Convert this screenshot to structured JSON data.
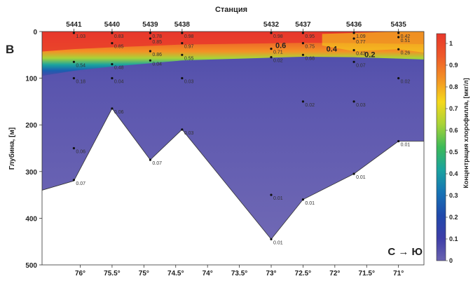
{
  "panel_label": "B",
  "direction_label": "С → Ю",
  "chart_data": {
    "type": "heatmap",
    "title": "Станция",
    "xlabel": "",
    "ylabel": "Глубина, [м]",
    "colorbar_label": "Концентрация хлорофилла, [мкг/л]",
    "xlim": [
      76.6,
      70.6
    ],
    "ylim": [
      500,
      0
    ],
    "x_ticks": [
      "76°",
      "75.5°",
      "75°",
      "74.5°",
      "74°",
      "73.5°",
      "73°",
      "72.5°",
      "72°",
      "71.5°",
      "71°"
    ],
    "x_tick_values": [
      76,
      75.5,
      75,
      74.5,
      74,
      73.5,
      73,
      72.5,
      72,
      71.5,
      71
    ],
    "y_ticks": [
      0,
      100,
      200,
      300,
      400,
      500
    ],
    "colorbar_ticks": [
      0,
      0.1,
      0.2,
      0.3,
      0.4,
      0.5,
      0.6,
      0.7,
      0.8,
      0.9,
      1
    ],
    "colorbar_colors": [
      "#6a63b0",
      "#3d3da8",
      "#2049ab",
      "#1673b5",
      "#1aa39f",
      "#3cba58",
      "#a8d338",
      "#f5d81c",
      "#f39225",
      "#ee5a2a",
      "#e8372b"
    ],
    "stations": [
      {
        "name": "5441",
        "lon": 76.1,
        "bottom_depth": 320
      },
      {
        "name": "5440",
        "lon": 75.5,
        "bottom_depth": 165
      },
      {
        "name": "5439",
        "lon": 74.9,
        "bottom_depth": 275
      },
      {
        "name": "5438",
        "lon": 74.4,
        "bottom_depth": 210
      },
      {
        "name": "5432",
        "lon": 73.0,
        "bottom_depth": 445
      },
      {
        "name": "5437",
        "lon": 72.5,
        "bottom_depth": 360
      },
      {
        "name": "5436",
        "lon": 71.7,
        "bottom_depth": 305
      },
      {
        "name": "5435",
        "lon": 71.0,
        "bottom_depth": 235
      }
    ],
    "samples": [
      {
        "station": "5441",
        "depth": 3,
        "label": "1.03"
      },
      {
        "station": "5441",
        "depth": 65,
        "label": "0.54"
      },
      {
        "station": "5441",
        "depth": 100,
        "label": "0.18"
      },
      {
        "station": "5441",
        "depth": 250,
        "label": "0.06"
      },
      {
        "station": "5441",
        "depth": 318,
        "label": "0.07"
      },
      {
        "station": "5440",
        "depth": 3,
        "label": "0.83"
      },
      {
        "station": "5440",
        "depth": 25,
        "label": "0.85"
      },
      {
        "station": "5440",
        "depth": 70,
        "label": "0.48"
      },
      {
        "station": "5440",
        "depth": 100,
        "label": "0.04"
      },
      {
        "station": "5440",
        "depth": 165,
        "label": "0.06"
      },
      {
        "station": "5439",
        "depth": 3,
        "label": "0.78"
      },
      {
        "station": "5439",
        "depth": 15,
        "label": "0.85"
      },
      {
        "station": "5439",
        "depth": 42,
        "label": "0.86"
      },
      {
        "station": "5439",
        "depth": 62,
        "label": "0.04"
      },
      {
        "station": "5439",
        "depth": 275,
        "label": "0.07"
      },
      {
        "station": "5438",
        "depth": 3,
        "label": "0.98"
      },
      {
        "station": "5438",
        "depth": 25,
        "label": "0.97"
      },
      {
        "station": "5438",
        "depth": 50,
        "label": "0.55"
      },
      {
        "station": "5438",
        "depth": 100,
        "label": "0.03"
      },
      {
        "station": "5438",
        "depth": 210,
        "label": "0.03"
      },
      {
        "station": "5432",
        "depth": 3,
        "label": "0.98"
      },
      {
        "station": "5432",
        "depth": 37,
        "label": "0.71"
      },
      {
        "station": "5432",
        "depth": 55,
        "label": "0.02"
      },
      {
        "station": "5432",
        "depth": 350,
        "label": "0.01"
      },
      {
        "station": "5432",
        "depth": 445,
        "label": "0.01"
      },
      {
        "station": "5437",
        "depth": 3,
        "label": "0.95"
      },
      {
        "station": "5437",
        "depth": 25,
        "label": "0.75"
      },
      {
        "station": "5437",
        "depth": 50,
        "label": "0.68"
      },
      {
        "station": "5437",
        "depth": 150,
        "label": "0.02"
      },
      {
        "station": "5437",
        "depth": 360,
        "label": "0.01"
      },
      {
        "station": "5436",
        "depth": 3,
        "label": "1.09"
      },
      {
        "station": "5436",
        "depth": 15,
        "label": "0.77"
      },
      {
        "station": "5436",
        "depth": 40,
        "label": "0.43"
      },
      {
        "station": "5436",
        "depth": 65,
        "label": "0.07"
      },
      {
        "station": "5436",
        "depth": 150,
        "label": "0.03"
      },
      {
        "station": "5436",
        "depth": 305,
        "label": "0.01"
      },
      {
        "station": "5435",
        "depth": 3,
        "label": "0.42"
      },
      {
        "station": "5435",
        "depth": 12,
        "label": "0.51"
      },
      {
        "station": "5435",
        "depth": 38,
        "label": "0.26"
      },
      {
        "station": "5435",
        "depth": 100,
        "label": "0.02"
      },
      {
        "station": "5435",
        "depth": 235,
        "label": "0.01"
      }
    ],
    "contour_labels": [
      {
        "label": "0.6",
        "lon": 72.85,
        "depth": 35
      },
      {
        "label": "0.4",
        "lon": 72.05,
        "depth": 43
      },
      {
        "label": "0.2",
        "lon": 71.45,
        "depth": 55
      }
    ]
  }
}
